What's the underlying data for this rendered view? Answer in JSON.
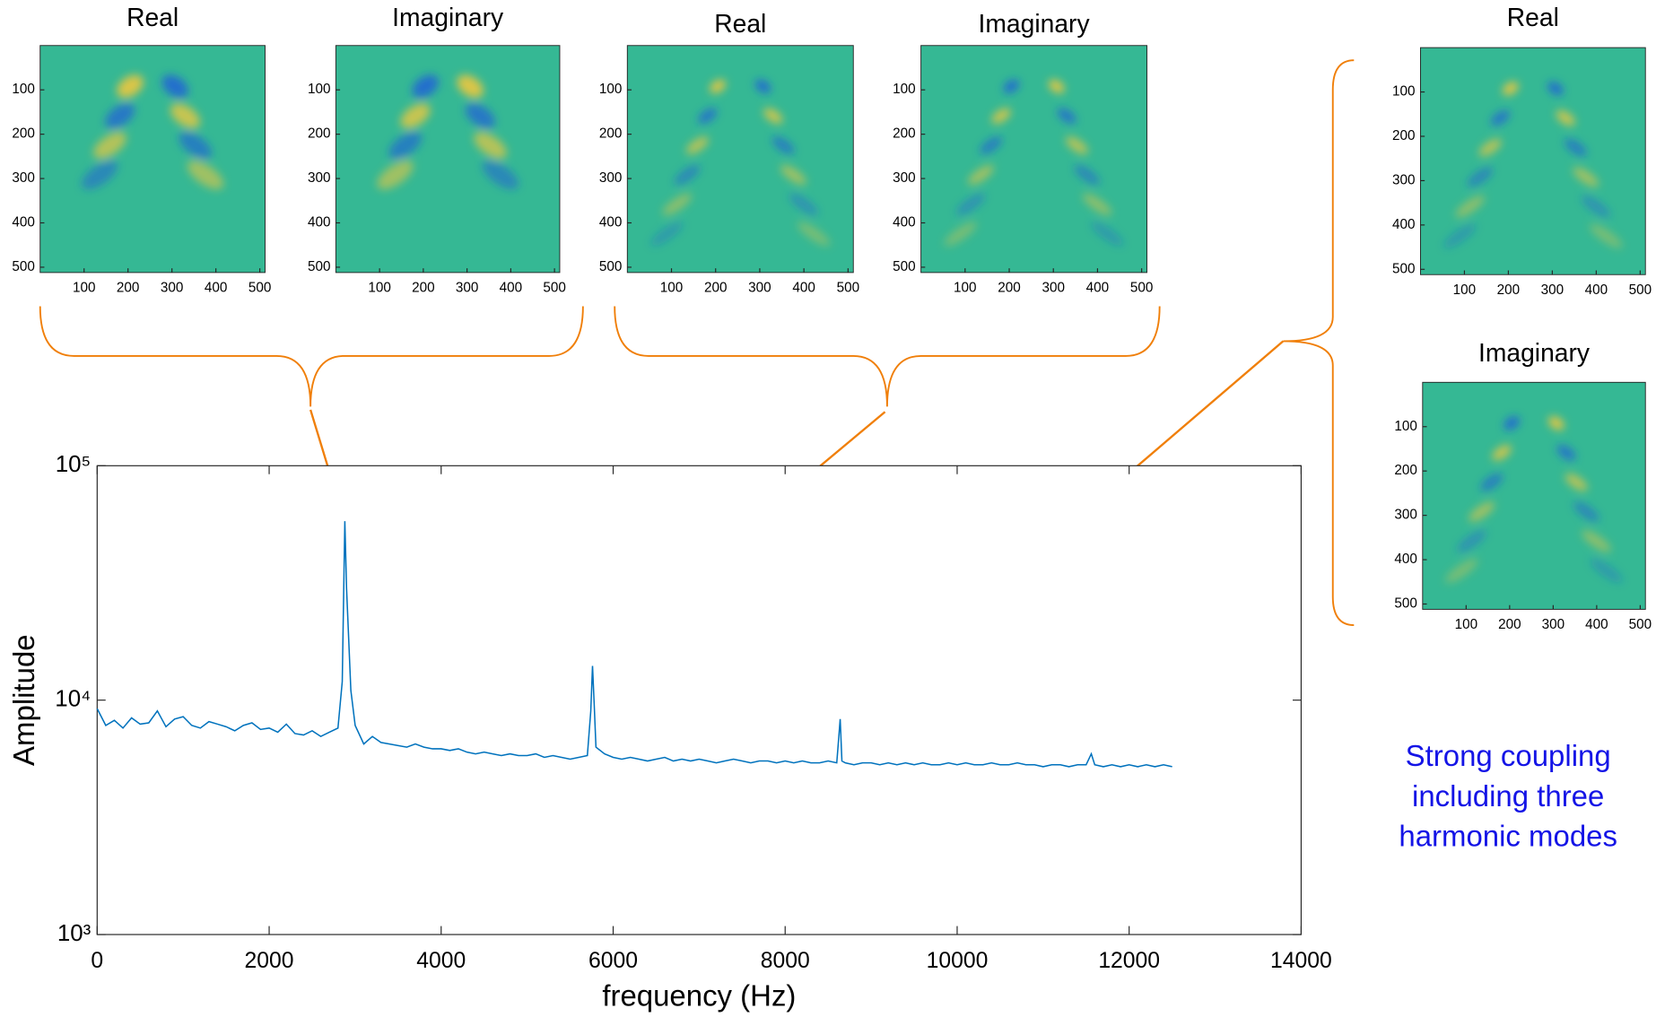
{
  "chart_data": [
    {
      "type": "line",
      "xlabel": "frequency (Hz)",
      "ylabel": "Amplitude",
      "log_y": true,
      "grid": false,
      "annotation": [
        "Strong coupling",
        "including three",
        "harmonic modes"
      ],
      "annotation_color": "#1414e6",
      "xlim": [
        0,
        14000
      ],
      "xticks": [
        0,
        2000,
        4000,
        6000,
        8000,
        10000,
        12000,
        14000
      ],
      "ylim": [
        1000,
        100000
      ],
      "yticks": [
        {
          "value": 1000,
          "label": "10³"
        },
        {
          "value": 10000,
          "label": "10⁴"
        },
        {
          "value": 100000,
          "label": "10⁵"
        }
      ],
      "series": [
        {
          "color": "#0072bd",
          "x": [
            0,
            100,
            200,
            300,
            400,
            500,
            600,
            700,
            800,
            900,
            1000,
            1100,
            1200,
            1300,
            1400,
            1500,
            1600,
            1700,
            1800,
            1900,
            2000,
            2100,
            2200,
            2300,
            2400,
            2500,
            2600,
            2700,
            2800,
            2850,
            2880,
            2900,
            2950,
            3000,
            3100,
            3200,
            3300,
            3400,
            3500,
            3600,
            3700,
            3800,
            3900,
            4000,
            4100,
            4200,
            4300,
            4400,
            4500,
            4600,
            4700,
            4800,
            4900,
            5000,
            5100,
            5200,
            5300,
            5400,
            5500,
            5600,
            5700,
            5740,
            5760,
            5780,
            5800,
            5900,
            6000,
            6100,
            6200,
            6300,
            6400,
            6500,
            6600,
            6700,
            6800,
            6900,
            7000,
            7100,
            7200,
            7300,
            7400,
            7500,
            7600,
            7700,
            7800,
            7900,
            8000,
            8100,
            8200,
            8300,
            8400,
            8500,
            8600,
            8640,
            8660,
            8700,
            8800,
            8900,
            9000,
            9100,
            9200,
            9300,
            9400,
            9500,
            9600,
            9700,
            9800,
            9900,
            10000,
            10100,
            10200,
            10300,
            10400,
            10500,
            10600,
            10700,
            10800,
            10900,
            11000,
            11100,
            11200,
            11300,
            11400,
            11500,
            11560,
            11600,
            11700,
            11800,
            11900,
            12000,
            12100,
            12200,
            12300,
            12400,
            12500
          ],
          "values": [
            9200,
            7800,
            8200,
            7600,
            8400,
            7900,
            8000,
            9000,
            7700,
            8300,
            8500,
            7800,
            7600,
            8100,
            7900,
            7700,
            7400,
            7800,
            8000,
            7500,
            7600,
            7300,
            7900,
            7200,
            7100,
            7400,
            7000,
            7300,
            7600,
            12000,
            58000,
            30000,
            11000,
            7800,
            6500,
            7000,
            6600,
            6500,
            6400,
            6300,
            6500,
            6300,
            6200,
            6200,
            6100,
            6200,
            6000,
            5900,
            6000,
            5900,
            5800,
            5900,
            5800,
            5800,
            5900,
            5700,
            5800,
            5700,
            5600,
            5700,
            5800,
            9000,
            14000,
            9500,
            6300,
            5900,
            5700,
            5600,
            5700,
            5600,
            5500,
            5600,
            5700,
            5500,
            5600,
            5500,
            5600,
            5500,
            5400,
            5500,
            5600,
            5500,
            5400,
            5500,
            5500,
            5400,
            5500,
            5400,
            5500,
            5400,
            5400,
            5500,
            5400,
            8300,
            5500,
            5400,
            5300,
            5400,
            5400,
            5300,
            5400,
            5300,
            5400,
            5300,
            5400,
            5300,
            5300,
            5400,
            5300,
            5400,
            5300,
            5300,
            5400,
            5300,
            5300,
            5400,
            5300,
            5300,
            5200,
            5300,
            5300,
            5200,
            5300,
            5300,
            5900,
            5300,
            5200,
            5300,
            5200,
            5300,
            5200,
            5300,
            5200,
            5300,
            5200
          ]
        }
      ]
    },
    {
      "type": "heatmap",
      "title": "Real",
      "xlim": [
        0,
        512
      ],
      "ylim": [
        0,
        512
      ],
      "xticks": [
        100,
        200,
        300,
        400,
        500
      ],
      "yticks": [
        100,
        200,
        300,
        400,
        500
      ]
    },
    {
      "type": "heatmap",
      "title": "Imaginary",
      "xlim": [
        0,
        512
      ],
      "ylim": [
        0,
        512
      ],
      "xticks": [
        100,
        200,
        300,
        400,
        500
      ],
      "yticks": [
        100,
        200,
        300,
        400,
        500
      ]
    },
    {
      "type": "heatmap",
      "title": "Real",
      "xlim": [
        0,
        512
      ],
      "ylim": [
        0,
        512
      ],
      "xticks": [
        100,
        200,
        300,
        400,
        500
      ],
      "yticks": [
        100,
        200,
        300,
        400,
        500
      ]
    },
    {
      "type": "heatmap",
      "title": "Imaginary",
      "xlim": [
        0,
        512
      ],
      "ylim": [
        0,
        512
      ],
      "xticks": [
        100,
        200,
        300,
        400,
        500
      ],
      "yticks": [
        100,
        200,
        300,
        400,
        500
      ]
    },
    {
      "type": "heatmap",
      "title": "Real",
      "xlim": [
        0,
        512
      ],
      "ylim": [
        0,
        512
      ],
      "xticks": [
        100,
        200,
        300,
        400,
        500
      ],
      "yticks": [
        100,
        200,
        300,
        400,
        500
      ]
    },
    {
      "type": "heatmap",
      "title": "Imaginary",
      "xlim": [
        0,
        512
      ],
      "ylim": [
        0,
        512
      ],
      "xticks": [
        100,
        200,
        300,
        400,
        500
      ],
      "yticks": [
        100,
        200,
        300,
        400,
        500
      ]
    }
  ]
}
